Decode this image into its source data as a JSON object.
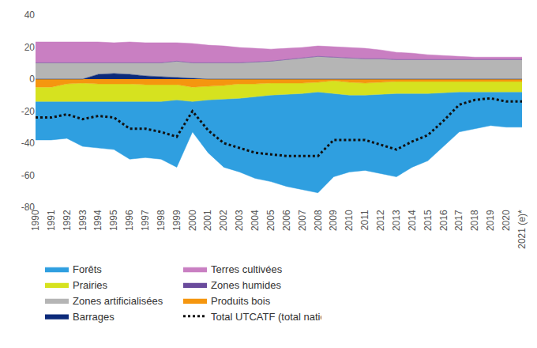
{
  "chart_data": {
    "type": "area",
    "stacked": true,
    "grid": false,
    "legend": "bottom",
    "categories": [
      "1990",
      "1991",
      "1992",
      "1993",
      "1994",
      "1995",
      "1996",
      "1997",
      "1998",
      "1999",
      "2000",
      "2001",
      "2002",
      "2003",
      "2004",
      "2005",
      "2006",
      "2007",
      "2008",
      "2009",
      "2010",
      "2011",
      "2012",
      "2013",
      "2014",
      "2015",
      "2016",
      "2017",
      "2018",
      "2019",
      "2020",
      "2021 (e)*"
    ],
    "ylim": [
      -80,
      40
    ],
    "yticks": [
      -80,
      -60,
      -40,
      -20,
      0,
      20,
      40
    ],
    "series": [
      {
        "name": "Forêts",
        "type": "area",
        "color": "#2f9fe0",
        "values": [
          -24,
          -24,
          -23,
          -28,
          -29,
          -30,
          -36,
          -35,
          -36,
          -42,
          -19,
          -33,
          -42.5,
          -46,
          -51,
          -54,
          -57.5,
          -60,
          -63,
          -52,
          -48,
          -47,
          -49.5,
          -52,
          -46,
          -42,
          -33.5,
          -25,
          -23,
          -21,
          -22,
          -22
        ]
      },
      {
        "name": "Prairies",
        "type": "area",
        "color": "#d6e21f",
        "values": [
          -9,
          -9,
          -11,
          -11.5,
          -11,
          -11,
          -11,
          -10.5,
          -10.5,
          -9.5,
          -9,
          -8.5,
          -8.5,
          -9,
          -8,
          -7.5,
          -7,
          -6.5,
          -6,
          -8,
          -8,
          -7.5,
          -7.5,
          -7.5,
          -7.5,
          -7.5,
          -7,
          -6.5,
          -6.5,
          -6.5,
          -6.5,
          -6.5
        ]
      },
      {
        "name": "Zones artificialisées",
        "type": "area",
        "color": "#b5b5b5",
        "values": [
          10,
          10,
          10,
          10,
          7,
          6.5,
          7,
          8,
          8.5,
          10,
          9.5,
          10,
          10,
          10,
          10.5,
          11,
          12,
          13,
          14,
          13.5,
          13,
          12.5,
          12.5,
          12,
          12,
          12,
          12,
          12,
          12,
          12,
          12,
          12
        ]
      },
      {
        "name": "Barrages",
        "type": "area",
        "color": "#0c2a7a",
        "values": [
          0,
          0,
          0,
          0,
          3,
          3.5,
          3,
          2,
          1.5,
          1,
          0.5,
          0,
          0,
          0,
          0,
          0,
          0,
          0,
          0,
          0,
          0,
          0,
          0,
          0,
          0,
          0,
          0,
          0,
          0,
          0,
          0,
          0
        ]
      },
      {
        "name": "Terres cultivées",
        "type": "area",
        "color": "#c97fc2",
        "values": [
          13,
          13,
          13,
          13,
          13,
          12.5,
          13,
          12.5,
          12.5,
          11.5,
          12,
          11,
          10.5,
          9.5,
          8.5,
          7.5,
          7,
          6.5,
          6.5,
          6.5,
          6.5,
          6.5,
          5.5,
          4.5,
          4,
          3,
          2.5,
          2,
          1.5,
          1.5,
          1.5,
          1.5
        ]
      },
      {
        "name": "Zones humides",
        "type": "area",
        "color": "#6a4b9c",
        "values": [
          0.2,
          0.2,
          0.2,
          0.2,
          0.2,
          0.2,
          0.2,
          0.2,
          0.2,
          0.2,
          0.2,
          0.2,
          0.2,
          0.2,
          0.2,
          0.2,
          0.2,
          0.2,
          0.2,
          0.2,
          0.2,
          0.2,
          0.2,
          0.2,
          0.2,
          0.2,
          0.2,
          0.2,
          0.2,
          0.2,
          0.2,
          0.2
        ]
      },
      {
        "name": "Produits bois",
        "type": "area",
        "color": "#f5960f",
        "values": [
          -5,
          -5,
          -3,
          -2.5,
          -3,
          -3,
          -3,
          -3.5,
          -3.5,
          -3.5,
          -5,
          -4.5,
          -4,
          -3,
          -3,
          -2.5,
          -2.5,
          -2.5,
          -2,
          -1,
          -2,
          -2.5,
          -2,
          -1.5,
          -1.5,
          -1.5,
          -1.5,
          -1.5,
          -1.5,
          -1.5,
          -1.5,
          -1.5
        ]
      },
      {
        "name": "Total UTCATF (total national)",
        "type": "line",
        "color": "#111111",
        "line_style": "dotted",
        "values": [
          -24,
          -24,
          -22,
          -25,
          -23,
          -24,
          -31,
          -31,
          -33,
          -36,
          -20,
          -32,
          -40,
          -43,
          -46,
          -47,
          -48,
          -48,
          -48,
          -38,
          -38,
          -38,
          -41,
          -44,
          -39,
          -35,
          -26,
          -16,
          -13,
          -12,
          -14,
          -14
        ]
      }
    ]
  }
}
